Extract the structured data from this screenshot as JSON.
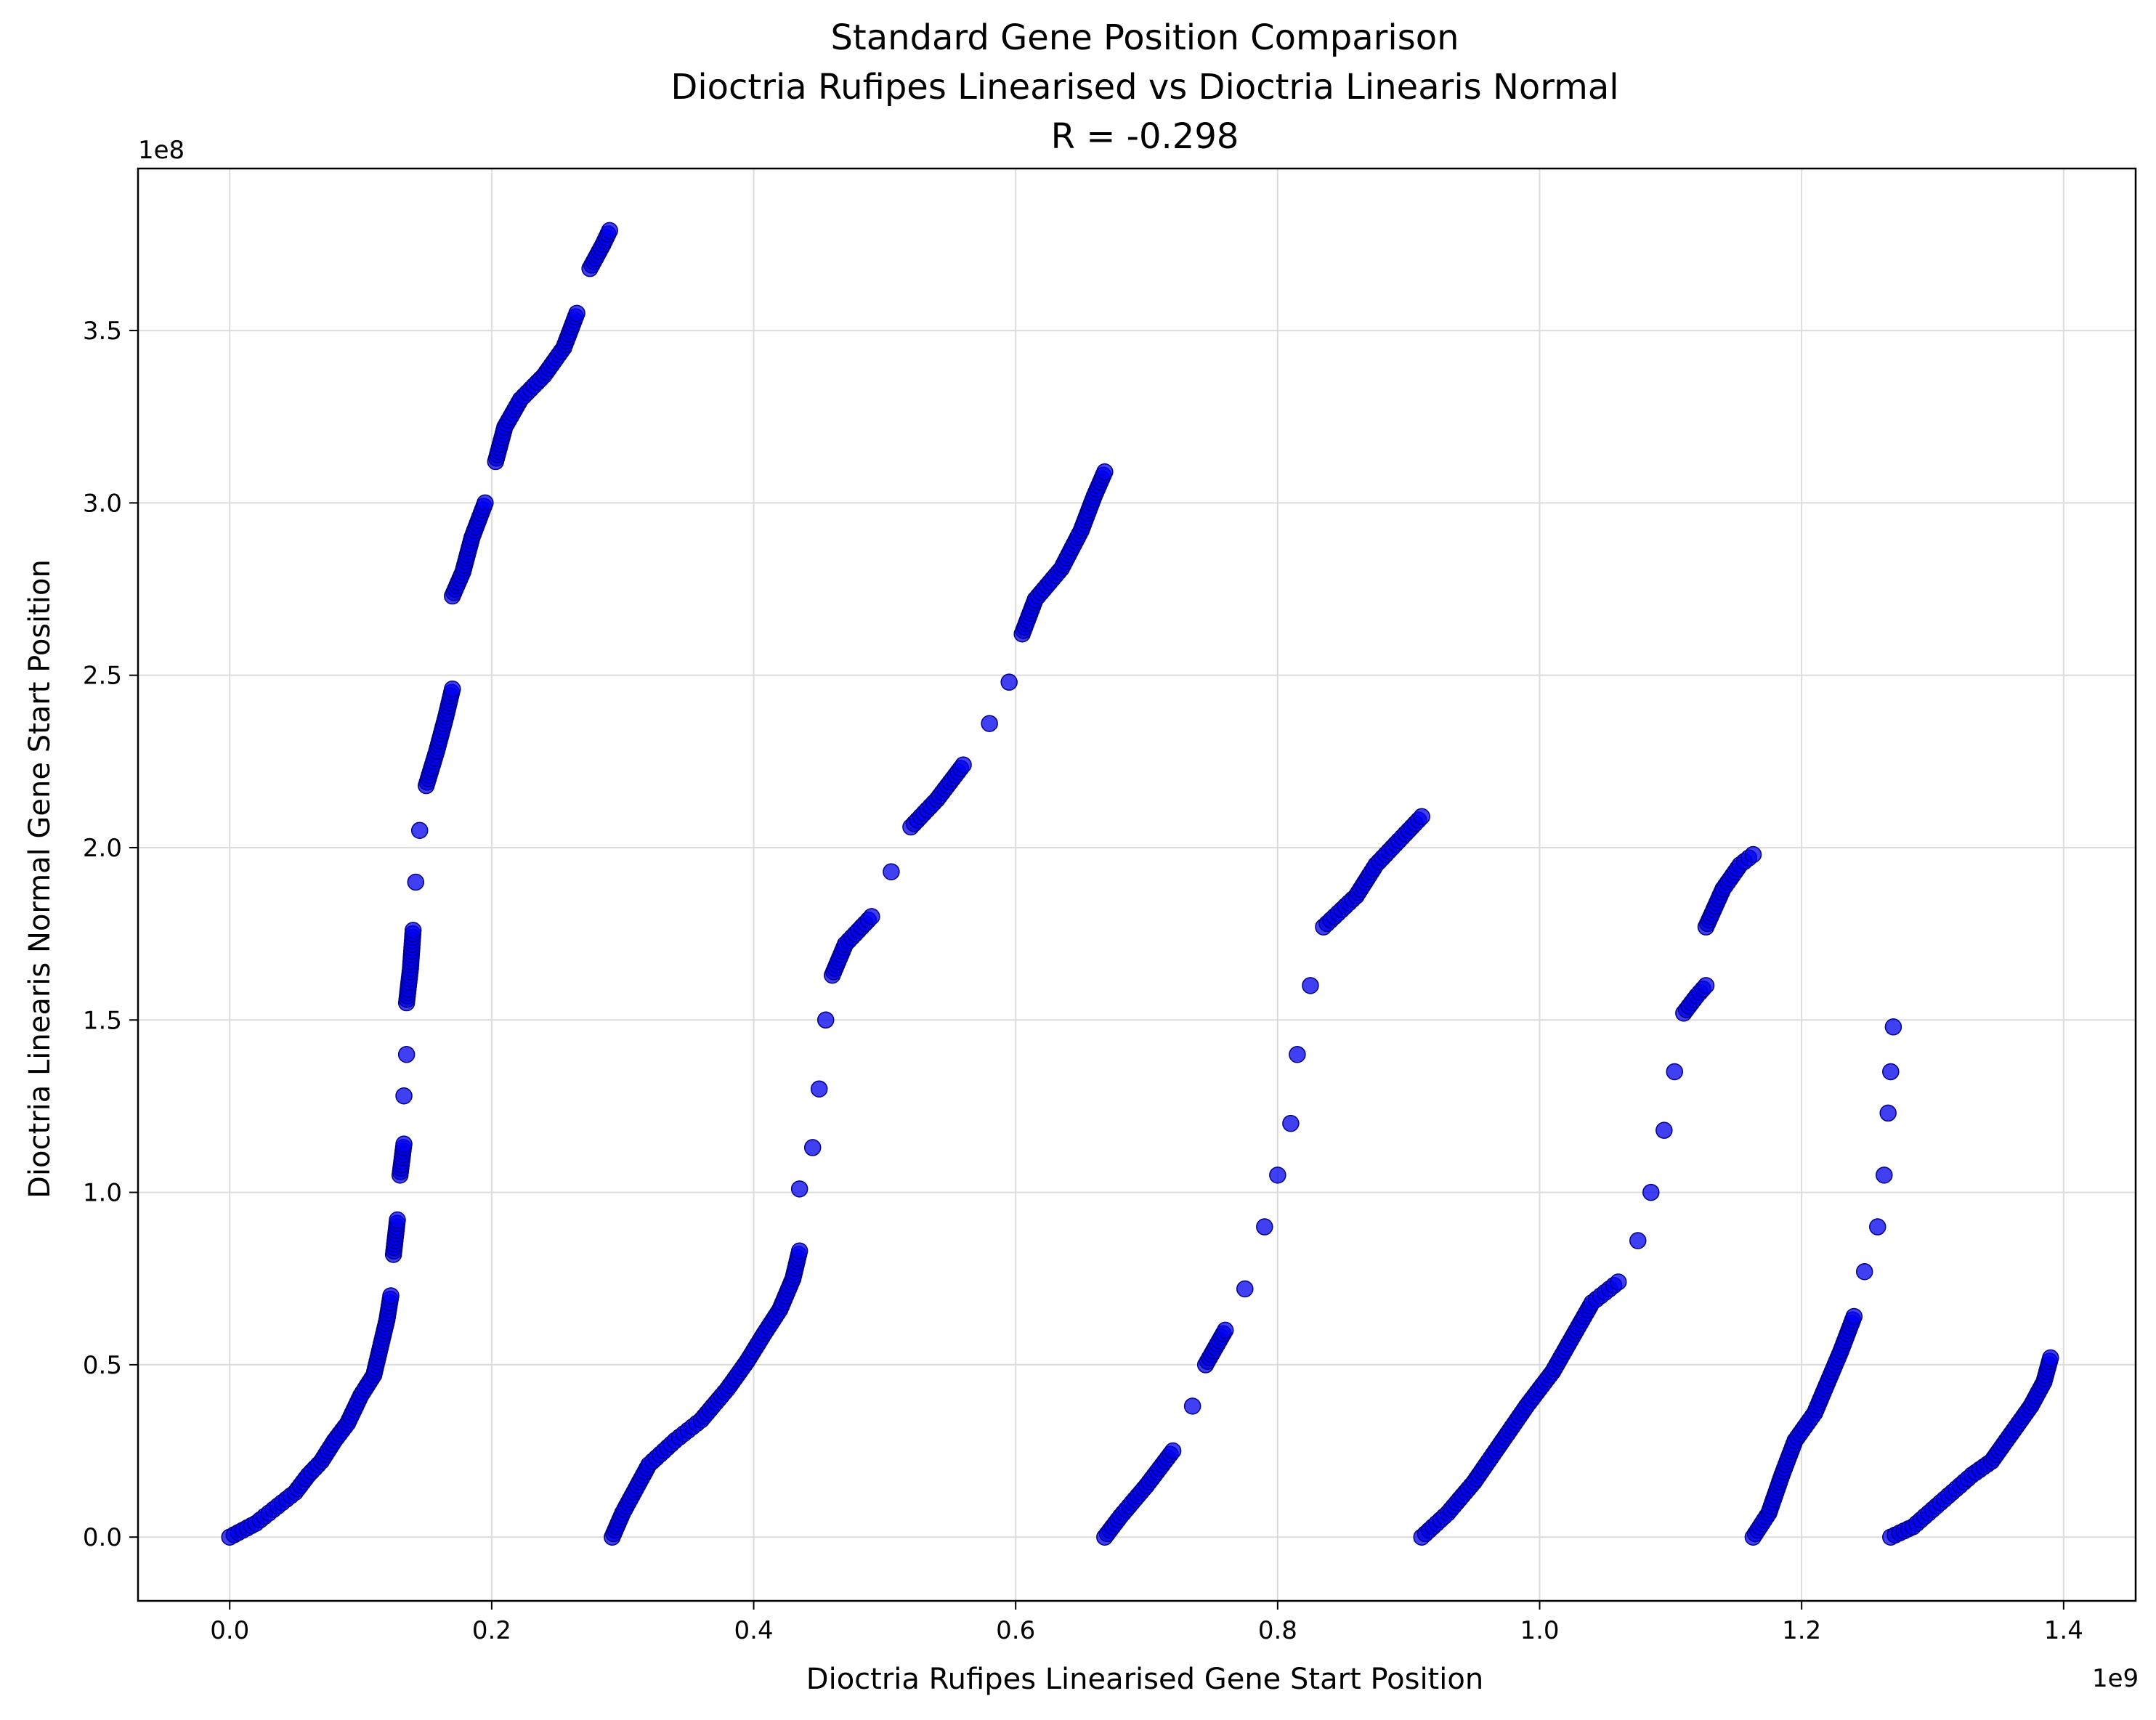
{
  "chart_data": {
    "type": "scatter",
    "title_lines": [
      "Standard Gene Position Comparison",
      "Dioctria Rufipes Linearised vs Dioctria Linearis Normal",
      "R = -0.298"
    ],
    "xlabel": "Dioctria Rufipes Linearised Gene Start Position",
    "ylabel": "Dioctria Linearis Normal Gene Start Position",
    "x_offset_label": "1e9",
    "y_offset_label": "1e8",
    "x_ticks": [
      0.0,
      0.2,
      0.4,
      0.6,
      0.8,
      1.0,
      1.2,
      1.4
    ],
    "x_tick_labels": [
      "0.0",
      "0.2",
      "0.4",
      "0.6",
      "0.8",
      "1.0",
      "1.2",
      "1.4"
    ],
    "y_ticks": [
      0.0,
      0.5,
      1.0,
      1.5,
      2.0,
      2.5,
      3.0,
      3.5
    ],
    "y_tick_labels": [
      "0.0",
      "0.5",
      "1.0",
      "1.5",
      "2.0",
      "2.5",
      "3.0",
      "3.5"
    ],
    "x_unit_scale": 1000000000,
    "y_unit_scale": 100000000,
    "xlim": [
      -70000000,
      1455000000
    ],
    "ylim": [
      -18500000,
      397000000
    ],
    "grid": true,
    "marker_color": "#0000ee",
    "marker_edge_color": "#00008b",
    "series": [
      {
        "points": [
          [
            0,
            0
          ],
          [
            10000000,
            2000000
          ],
          [
            20000000,
            4000000
          ],
          [
            30000000,
            7000000
          ],
          [
            40000000,
            10000000
          ],
          [
            50000000,
            13000000
          ],
          [
            60000000,
            18000000
          ],
          [
            70000000,
            22000000
          ],
          [
            80000000,
            28000000
          ],
          [
            90000000,
            33000000
          ],
          [
            100000000,
            41000000
          ],
          [
            110000000,
            47000000
          ],
          [
            115000000,
            55000000
          ],
          [
            120000000,
            63000000
          ],
          [
            123000000,
            70000000
          ],
          [
            125000000,
            82000000
          ],
          [
            128000000,
            92000000
          ],
          [
            130000000,
            105000000
          ],
          [
            133000000,
            114000000
          ],
          [
            133000000,
            128000000
          ],
          [
            135000000,
            140000000
          ],
          [
            135000000,
            155000000
          ],
          [
            138000000,
            165000000
          ],
          [
            140000000,
            176000000
          ],
          [
            142000000,
            190000000
          ],
          [
            145000000,
            205000000
          ],
          [
            150000000,
            218000000
          ],
          [
            158000000,
            228000000
          ],
          [
            165000000,
            238000000
          ],
          [
            170000000,
            246000000
          ],
          [
            170000000,
            273000000
          ],
          [
            178000000,
            280000000
          ],
          [
            185000000,
            290000000
          ],
          [
            195000000,
            300000000
          ],
          [
            203000000,
            312000000
          ],
          [
            210000000,
            322000000
          ],
          [
            222000000,
            330000000
          ],
          [
            240000000,
            337000000
          ],
          [
            255000000,
            345000000
          ],
          [
            265000000,
            355000000
          ],
          [
            275000000,
            368000000
          ],
          [
            285000000,
            375000000
          ],
          [
            290000000,
            379000000
          ]
        ]
      },
      {
        "points": [
          [
            292000000,
            0
          ],
          [
            300000000,
            7000000
          ],
          [
            310000000,
            14000000
          ],
          [
            320000000,
            21000000
          ],
          [
            340000000,
            28000000
          ],
          [
            360000000,
            34000000
          ],
          [
            380000000,
            43000000
          ],
          [
            395000000,
            51000000
          ],
          [
            408000000,
            59000000
          ],
          [
            420000000,
            66000000
          ],
          [
            430000000,
            75000000
          ],
          [
            435000000,
            83000000
          ],
          [
            435000000,
            101000000
          ],
          [
            445000000,
            113000000
          ],
          [
            450000000,
            130000000
          ],
          [
            455000000,
            150000000
          ],
          [
            460000000,
            163000000
          ],
          [
            470000000,
            172000000
          ],
          [
            490000000,
            180000000
          ],
          [
            505000000,
            193000000
          ],
          [
            520000000,
            206000000
          ],
          [
            540000000,
            214000000
          ],
          [
            560000000,
            224000000
          ],
          [
            580000000,
            236000000
          ],
          [
            595000000,
            248000000
          ],
          [
            605000000,
            262000000
          ],
          [
            615000000,
            272000000
          ],
          [
            635000000,
            281000000
          ],
          [
            650000000,
            292000000
          ],
          [
            660000000,
            302000000
          ],
          [
            668000000,
            309000000
          ]
        ]
      },
      {
        "points": [
          [
            668000000,
            0
          ],
          [
            680000000,
            6000000
          ],
          [
            700000000,
            15000000
          ],
          [
            720000000,
            25000000
          ],
          [
            735000000,
            38000000
          ],
          [
            745000000,
            50000000
          ],
          [
            760000000,
            60000000
          ],
          [
            775000000,
            72000000
          ],
          [
            790000000,
            90000000
          ],
          [
            800000000,
            105000000
          ],
          [
            810000000,
            120000000
          ],
          [
            815000000,
            140000000
          ],
          [
            825000000,
            160000000
          ],
          [
            835000000,
            177000000
          ],
          [
            860000000,
            186000000
          ],
          [
            875000000,
            195000000
          ],
          [
            895000000,
            203000000
          ],
          [
            910000000,
            209000000
          ]
        ]
      },
      {
        "points": [
          [
            910000000,
            0
          ],
          [
            930000000,
            7000000
          ],
          [
            950000000,
            16000000
          ],
          [
            970000000,
            27000000
          ],
          [
            990000000,
            38000000
          ],
          [
            1010000000,
            48000000
          ],
          [
            1025000000,
            58000000
          ],
          [
            1040000000,
            68000000
          ],
          [
            1060000000,
            74000000
          ],
          [
            1075000000,
            86000000
          ],
          [
            1085000000,
            100000000
          ],
          [
            1095000000,
            118000000
          ],
          [
            1103000000,
            135000000
          ],
          [
            1110000000,
            152000000
          ],
          [
            1120000000,
            157000000
          ],
          [
            1127000000,
            160000000
          ],
          [
            1127000000,
            177000000
          ],
          [
            1140000000,
            188000000
          ],
          [
            1153000000,
            195000000
          ],
          [
            1163000000,
            198000000
          ]
        ]
      },
      {
        "points": [
          [
            1163000000,
            0
          ],
          [
            1175000000,
            7000000
          ],
          [
            1185000000,
            18000000
          ],
          [
            1195000000,
            28000000
          ],
          [
            1210000000,
            36000000
          ],
          [
            1220000000,
            45000000
          ],
          [
            1230000000,
            54000000
          ],
          [
            1240000000,
            64000000
          ],
          [
            1248000000,
            77000000
          ],
          [
            1258000000,
            90000000
          ],
          [
            1263000000,
            105000000
          ],
          [
            1266000000,
            123000000
          ],
          [
            1268000000,
            135000000
          ],
          [
            1270000000,
            148000000
          ]
        ]
      },
      {
        "points": [
          [
            1268000000,
            0
          ],
          [
            1285000000,
            3000000
          ],
          [
            1300000000,
            8000000
          ],
          [
            1315000000,
            13000000
          ],
          [
            1330000000,
            18000000
          ],
          [
            1345000000,
            22000000
          ],
          [
            1360000000,
            30000000
          ],
          [
            1375000000,
            38000000
          ],
          [
            1385000000,
            45000000
          ],
          [
            1390000000,
            52000000
          ]
        ]
      }
    ]
  }
}
